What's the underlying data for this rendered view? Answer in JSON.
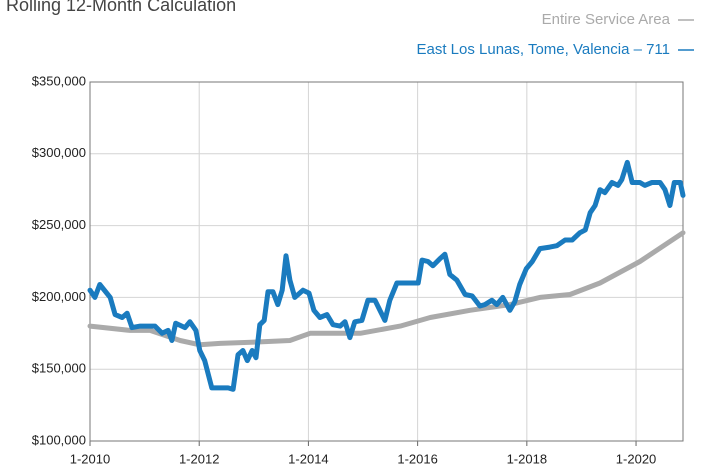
{
  "chart_data": {
    "type": "line",
    "title": "Rolling 12-Month Calculation",
    "xlim": [
      2010,
      2020.86
    ],
    "xticks": [
      {
        "value": 2010,
        "label": "1-2010"
      },
      {
        "value": 2012,
        "label": "1-2012"
      },
      {
        "value": 2014,
        "label": "1-2014"
      },
      {
        "value": 2016,
        "label": "1-2016"
      },
      {
        "value": 2018,
        "label": "1-2018"
      },
      {
        "value": 2020,
        "label": "1-2020"
      }
    ],
    "ylim": [
      100000,
      350000
    ],
    "yticks": [
      {
        "value": 100000,
        "label": "$100,000"
      },
      {
        "value": 150000,
        "label": "$150,000"
      },
      {
        "value": 200000,
        "label": "$200,000"
      },
      {
        "value": 250000,
        "label": "$250,000"
      },
      {
        "value": 300000,
        "label": "$300,000"
      },
      {
        "value": 350000,
        "label": "$350,000"
      }
    ],
    "grid": true,
    "legend": "top-right",
    "series": [
      {
        "name": "Entire Service Area",
        "color": "#aaaaaa",
        "x": [
          2010,
          2010.73,
          2011.1,
          2011.65,
          2012.01,
          2012.38,
          2013.11,
          2013.66,
          2014.03,
          2014.95,
          2015.68,
          2016.23,
          2016.96,
          2017.69,
          2018.24,
          2018.79,
          2019.34,
          2020.07,
          2020.86
        ],
        "values": [
          180000,
          177000,
          177000,
          170000,
          167000,
          168000,
          169000,
          170000,
          175000,
          175000,
          180000,
          186000,
          191000,
          195000,
          200000,
          202000,
          210000,
          225000,
          245000
        ]
      },
      {
        "name": "East Los Lunas, Tome, Valencia – 711",
        "color": "#1a7bbf",
        "x": [
          2010,
          2010.09,
          2010.18,
          2010.37,
          2010.46,
          2010.59,
          2010.68,
          2010.77,
          2010.92,
          2011.19,
          2011.32,
          2011.43,
          2011.5,
          2011.57,
          2011.74,
          2011.83,
          2011.94,
          2012.01,
          2012.1,
          2012.23,
          2012.38,
          2012.53,
          2012.62,
          2012.71,
          2012.8,
          2012.88,
          2012.97,
          2013.04,
          2013.11,
          2013.19,
          2013.26,
          2013.35,
          2013.44,
          2013.52,
          2013.59,
          2013.66,
          2013.75,
          2013.9,
          2014.01,
          2014.1,
          2014.21,
          2014.34,
          2014.45,
          2014.58,
          2014.67,
          2014.76,
          2014.85,
          2014.98,
          2015.09,
          2015.22,
          2015.31,
          2015.4,
          2015.49,
          2015.62,
          2015.77,
          2015.9,
          2016.01,
          2016.08,
          2016.19,
          2016.28,
          2016.41,
          2016.5,
          2016.59,
          2016.72,
          2016.87,
          2017.0,
          2017.14,
          2017.23,
          2017.36,
          2017.45,
          2017.56,
          2017.69,
          2017.78,
          2017.87,
          2017.99,
          2018.1,
          2018.24,
          2018.42,
          2018.55,
          2018.7,
          2018.83,
          2018.97,
          2019.07,
          2019.16,
          2019.25,
          2019.34,
          2019.43,
          2019.56,
          2019.67,
          2019.74,
          2019.84,
          2019.93,
          2020.07,
          2020.16,
          2020.29,
          2020.44,
          2020.53,
          2020.62,
          2020.7,
          2020.81,
          2020.86
        ],
        "values": [
          205000,
          200000,
          209000,
          200000,
          188000,
          186000,
          189000,
          179000,
          180000,
          180000,
          175000,
          177000,
          170000,
          182000,
          179000,
          183000,
          177000,
          163000,
          156000,
          137000,
          137000,
          137000,
          136000,
          160000,
          163000,
          156000,
          163000,
          158000,
          181000,
          184000,
          204000,
          204000,
          195000,
          205000,
          229000,
          212000,
          200000,
          205000,
          203000,
          191000,
          186000,
          188000,
          181000,
          180000,
          183000,
          172000,
          183000,
          184000,
          198000,
          198000,
          191000,
          184000,
          198000,
          210000,
          210000,
          210000,
          210000,
          226000,
          225000,
          222000,
          227000,
          230000,
          216000,
          212000,
          202000,
          201000,
          194000,
          195000,
          198000,
          195000,
          200000,
          191000,
          197000,
          209000,
          220000,
          225000,
          234000,
          235000,
          236000,
          240000,
          240000,
          245000,
          247000,
          259000,
          264000,
          275000,
          273000,
          280000,
          278000,
          282000,
          294000,
          280000,
          280000,
          278000,
          280000,
          280000,
          275000,
          264000,
          280000,
          280000,
          271000
        ]
      }
    ]
  }
}
